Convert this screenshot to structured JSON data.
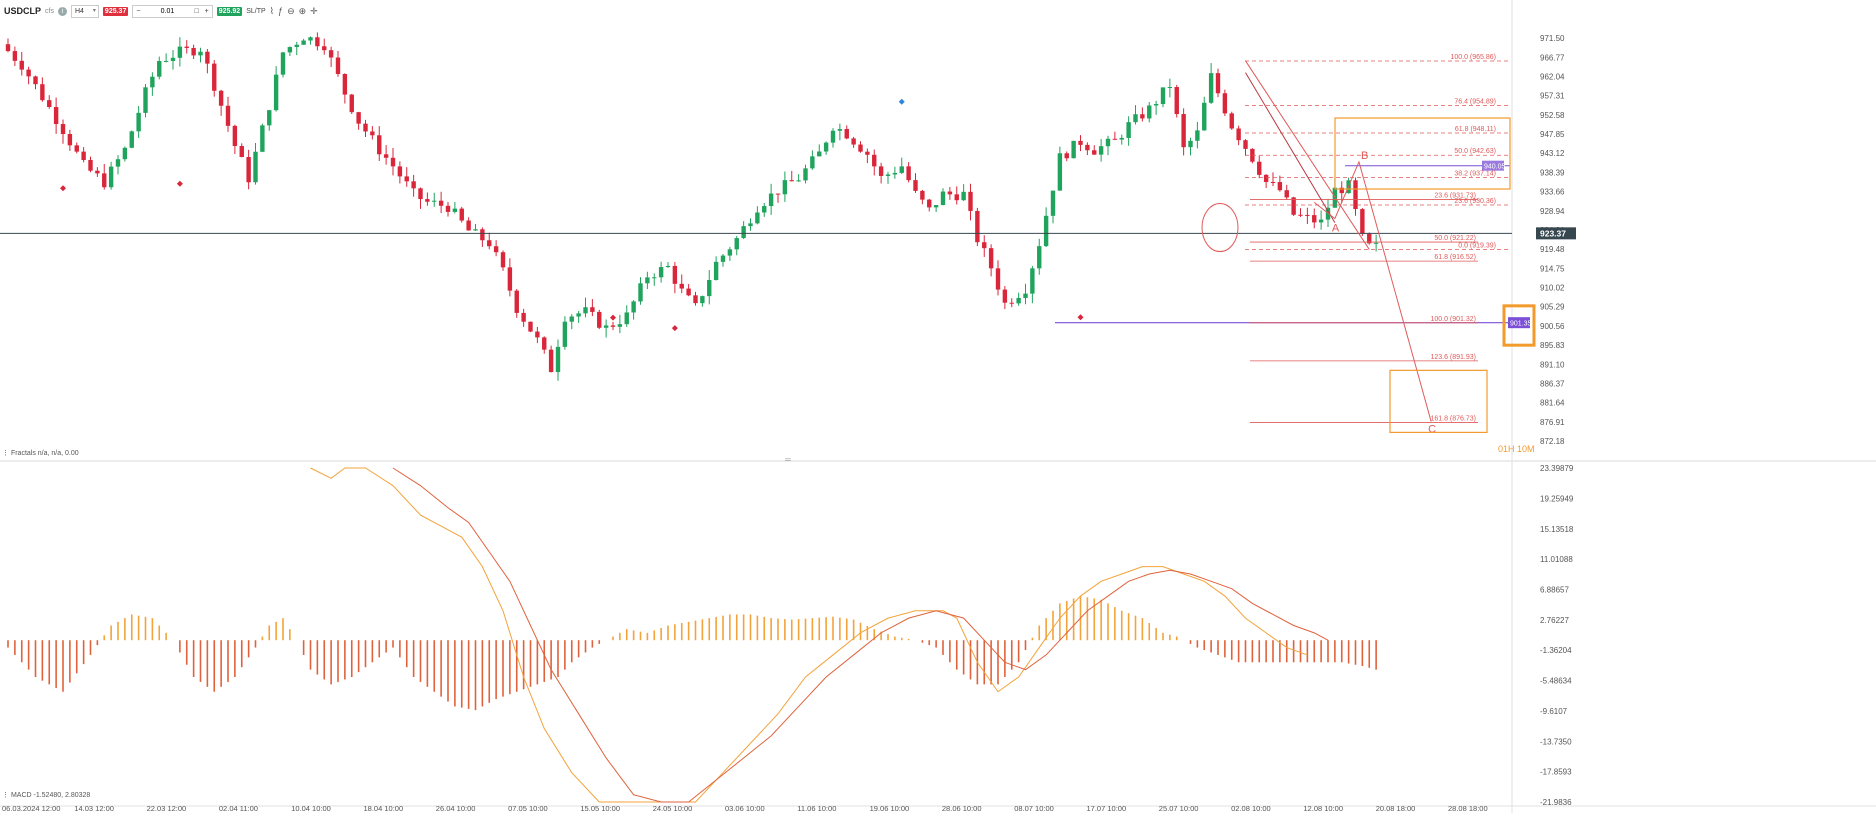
{
  "toolbar": {
    "symbol": "USDCLP",
    "symbol_sub": "cfs",
    "info_icon": "info-icon",
    "timeframe": "H4",
    "sell_price": "925.37",
    "minus": "−",
    "lot_value": "0.01",
    "lot_unit": "□",
    "plus": "+",
    "buy_price": "925.92",
    "sltp": "SL/TP",
    "icons": [
      "line-chart-icon",
      "indicator-icon",
      "zoom-out-icon",
      "zoom-in-icon",
      "crosshair-icon"
    ]
  },
  "colors": {
    "bull": "#1fa35d",
    "bear": "#d9263b",
    "fib": "#e05a5a",
    "orange": "#f39a2c",
    "purple": "#7b4fd6",
    "price_line": "#37474f",
    "macd_hist": "#e0623c",
    "macd_hist_pos": "#f2a33a",
    "macd_line": "#f2a33a",
    "signal_line": "#e0623c"
  },
  "chart_data": {
    "type": "candlestick",
    "symbol": "USDCLP",
    "timeframe": "H4",
    "ylim": [
      872.18,
      973.5
    ],
    "y_ticks": [
      "971.50",
      "966.77",
      "962.04",
      "957.31",
      "952.58",
      "947.85",
      "943.12",
      "938.39",
      "933.66",
      "928.94",
      "924.21",
      "919.48",
      "914.75",
      "910.02",
      "905.29",
      "900.56",
      "895.83",
      "891.10",
      "886.37",
      "881.64",
      "876.91",
      "872.18"
    ],
    "x_ticks": [
      "06.03.2024 12:00",
      "14.03 12:00",
      "22.03 12:00",
      "02.04 11:00",
      "10.04 10:00",
      "18.04 10:00",
      "26.04 10:00",
      "07.05 10:00",
      "15.05 10:00",
      "24.05 10:00",
      "03.06 10:00",
      "11.06 10:00",
      "19.06 10:00",
      "28.06 10:00",
      "08.07 10:00",
      "17.07 10:00",
      "25.07 10:00",
      "02.08 10:00",
      "12.08 10:00",
      "20.08 18:00",
      "28.08 18:00"
    ],
    "current_price": 923.37,
    "current_price_label": "923.37",
    "purple_level": 940.05,
    "purple_level_label": "940.05",
    "purple_line_level": 901.35,
    "purple_line_label": "901.35",
    "price_path": [
      [
        0,
        970
      ],
      [
        3,
        965
      ],
      [
        6,
        957
      ],
      [
        9,
        949
      ],
      [
        12,
        940
      ],
      [
        15,
        936
      ],
      [
        18,
        944
      ],
      [
        21,
        958
      ],
      [
        23,
        966
      ],
      [
        26,
        968
      ],
      [
        29,
        969
      ],
      [
        31,
        960
      ],
      [
        34,
        945
      ],
      [
        36,
        937
      ],
      [
        39,
        955
      ],
      [
        41,
        968
      ],
      [
        44,
        972
      ],
      [
        47,
        970
      ],
      [
        50,
        958
      ],
      [
        52,
        951
      ],
      [
        55,
        944
      ],
      [
        57,
        940
      ],
      [
        60,
        933
      ],
      [
        62,
        931
      ],
      [
        65,
        930
      ],
      [
        68,
        924
      ],
      [
        71,
        921
      ],
      [
        73,
        914
      ],
      [
        75,
        905
      ],
      [
        78,
        897
      ],
      [
        80,
        890
      ],
      [
        82,
        903
      ],
      [
        85,
        904
      ],
      [
        88,
        900
      ],
      [
        91,
        903
      ],
      [
        94,
        913
      ],
      [
        97,
        915
      ],
      [
        99,
        909
      ],
      [
        101,
        905
      ],
      [
        104,
        916
      ],
      [
        107,
        922
      ],
      [
        110,
        930
      ],
      [
        113,
        934
      ],
      [
        116,
        937
      ],
      [
        119,
        943
      ],
      [
        121,
        950
      ],
      [
        123,
        948
      ],
      [
        126,
        943
      ],
      [
        128,
        937
      ],
      [
        131,
        940
      ],
      [
        133,
        933
      ],
      [
        135,
        929
      ],
      [
        137,
        933
      ],
      [
        140,
        933
      ],
      [
        142,
        922
      ],
      [
        144,
        915
      ],
      [
        146,
        906
      ],
      [
        149,
        910
      ],
      [
        151,
        921
      ],
      [
        154,
        942
      ],
      [
        157,
        946
      ],
      [
        159,
        944
      ],
      [
        162,
        946
      ],
      [
        164,
        950
      ],
      [
        167,
        954
      ],
      [
        170,
        960
      ],
      [
        172,
        944
      ],
      [
        174,
        948
      ],
      [
        176,
        962
      ],
      [
        179,
        950
      ],
      [
        182,
        942
      ],
      [
        184,
        936
      ],
      [
        186,
        934
      ],
      [
        188,
        928
      ],
      [
        190,
        927
      ],
      [
        192,
        926
      ],
      [
        194,
        934
      ],
      [
        196,
        935
      ],
      [
        198,
        922
      ],
      [
        199,
        920
      ]
    ],
    "fractal_markers": [
      [
        8,
        934.5
      ],
      [
        25,
        935.6
      ],
      [
        88,
        902.6
      ],
      [
        97,
        900
      ],
      [
        130,
        955.8
      ],
      [
        156,
        902.7
      ]
    ],
    "fibonacci_left": [
      {
        "label": "100.0 (965.86)",
        "value": 965.86
      },
      {
        "label": "76.4 (954.89)",
        "value": 954.89
      },
      {
        "label": "61.8 (948.11)",
        "value": 948.11
      },
      {
        "label": "50.0 (942.63)",
        "value": 942.63
      },
      {
        "label": "38.2 (937.14)",
        "value": 937.14
      },
      {
        "label": "23.6 (930.36)",
        "value": 930.36
      },
      {
        "label": "0.0 (919.39)",
        "value": 919.39
      }
    ],
    "fibonacci_right": [
      {
        "label": "23.6 (931.73)",
        "value": 931.73
      },
      {
        "label": "50.0 (921.22)",
        "value": 921.22
      },
      {
        "label": "61.8 (916.52)",
        "value": 916.52
      },
      {
        "label": "100.0 (901.32)",
        "value": 901.32
      },
      {
        "label": "123.6 (891.93)",
        "value": 891.93
      },
      {
        "label": "161.8 (876.73)",
        "value": 876.73
      }
    ],
    "abc_labels": [
      "A",
      "B",
      "C"
    ],
    "countdown": "01H 10M",
    "indicators": {
      "fractals_label": "⋮ Fractals n/a, n/a, 0.00",
      "macd_label": "⋮ MACD -1.52480, 2.80328",
      "macd_ylim": [
        -21.9836,
        23.39879
      ],
      "macd_ticks": [
        "23.39879",
        "19.25949",
        "15.13518",
        "11.01088",
        "6.88657",
        "2.76227",
        "-1.36204",
        "-5.48634",
        "-9.6107",
        "-13.7350",
        "-17.8593",
        "-21.9836"
      ],
      "macd_histogram_anchor": [
        [
          0,
          -1
        ],
        [
          4,
          -5
        ],
        [
          8,
          -7
        ],
        [
          12,
          -2
        ],
        [
          15,
          2
        ],
        [
          18,
          3.5
        ],
        [
          21,
          3
        ],
        [
          24,
          0
        ],
        [
          27,
          -5
        ],
        [
          30,
          -7
        ],
        [
          33,
          -5
        ],
        [
          36,
          -1
        ],
        [
          38,
          2
        ],
        [
          40,
          3
        ],
        [
          42,
          0
        ],
        [
          44,
          -4
        ],
        [
          47,
          -6
        ],
        [
          50,
          -5
        ],
        [
          53,
          -3
        ],
        [
          56,
          -1
        ],
        [
          59,
          -5
        ],
        [
          62,
          -7
        ],
        [
          65,
          -9
        ],
        [
          68,
          -9.5
        ],
        [
          71,
          -8
        ],
        [
          74,
          -7
        ],
        [
          77,
          -6
        ],
        [
          80,
          -5
        ],
        [
          82,
          -3
        ],
        [
          85,
          -1
        ],
        [
          88,
          0.5
        ],
        [
          90,
          1.5
        ],
        [
          93,
          1
        ],
        [
          96,
          2
        ],
        [
          99,
          2.5
        ],
        [
          102,
          3
        ],
        [
          105,
          3.5
        ],
        [
          108,
          3.5
        ],
        [
          111,
          3
        ],
        [
          114,
          2.8
        ],
        [
          117,
          3
        ],
        [
          120,
          3.2
        ],
        [
          123,
          2.8
        ],
        [
          126,
          1.5
        ],
        [
          129,
          0.5
        ],
        [
          132,
          0
        ],
        [
          135,
          -1
        ],
        [
          138,
          -4
        ],
        [
          141,
          -6
        ],
        [
          144,
          -6
        ],
        [
          147,
          -3
        ],
        [
          150,
          2
        ],
        [
          153,
          5
        ],
        [
          156,
          6
        ],
        [
          159,
          5.5
        ],
        [
          162,
          4
        ],
        [
          165,
          3
        ],
        [
          168,
          1
        ],
        [
          170,
          0.5
        ],
        [
          173,
          -1
        ],
        [
          176,
          -2
        ],
        [
          179,
          -3
        ],
        [
          182,
          -3
        ],
        [
          185,
          -3
        ],
        [
          188,
          -3
        ],
        [
          191,
          -3
        ],
        [
          194,
          -3
        ],
        [
          197,
          -3.5
        ],
        [
          199,
          -4
        ]
      ],
      "macd_line": [
        [
          44,
          23.4
        ],
        [
          47,
          22
        ],
        [
          49,
          23.4
        ],
        [
          52,
          23.4
        ],
        [
          56,
          21
        ],
        [
          60,
          17
        ],
        [
          64,
          15
        ],
        [
          66,
          14
        ],
        [
          69,
          10
        ],
        [
          72,
          4
        ],
        [
          75,
          -5
        ],
        [
          78,
          -12
        ],
        [
          82,
          -18
        ],
        [
          86,
          -24
        ],
        [
          90,
          -28
        ],
        [
          96,
          -26
        ],
        [
          100,
          -22
        ],
        [
          104,
          -18
        ],
        [
          108,
          -14
        ],
        [
          112,
          -10
        ],
        [
          116,
          -5
        ],
        [
          120,
          -2
        ],
        [
          124,
          1
        ],
        [
          128,
          3
        ],
        [
          132,
          4
        ],
        [
          136,
          4
        ],
        [
          138,
          3
        ],
        [
          141,
          -3
        ],
        [
          144,
          -7
        ],
        [
          147,
          -5
        ],
        [
          150,
          -1
        ],
        [
          153,
          3
        ],
        [
          156,
          6
        ],
        [
          159,
          8
        ],
        [
          162,
          9
        ],
        [
          165,
          10
        ],
        [
          168,
          10
        ],
        [
          171,
          9
        ],
        [
          174,
          8
        ],
        [
          177,
          6
        ],
        [
          180,
          3
        ],
        [
          183,
          1
        ],
        [
          186,
          -1
        ],
        [
          189,
          -2
        ]
      ],
      "signal_line": [
        [
          56,
          23.4
        ],
        [
          60,
          21
        ],
        [
          64,
          18
        ],
        [
          67,
          16
        ],
        [
          70,
          12
        ],
        [
          73,
          8
        ],
        [
          76,
          2
        ],
        [
          79,
          -4
        ],
        [
          83,
          -10
        ],
        [
          87,
          -16
        ],
        [
          91,
          -21
        ],
        [
          95,
          -23
        ],
        [
          99,
          -22
        ],
        [
          103,
          -19
        ],
        [
          107,
          -16
        ],
        [
          111,
          -13
        ],
        [
          115,
          -9
        ],
        [
          119,
          -5
        ],
        [
          123,
          -2
        ],
        [
          127,
          1
        ],
        [
          131,
          3
        ],
        [
          135,
          4
        ],
        [
          139,
          3
        ],
        [
          142,
          0
        ],
        [
          145,
          -3
        ],
        [
          148,
          -4
        ],
        [
          151,
          -2
        ],
        [
          154,
          1
        ],
        [
          157,
          4
        ],
        [
          160,
          6
        ],
        [
          163,
          8
        ],
        [
          166,
          9
        ],
        [
          169,
          9.5
        ],
        [
          172,
          9
        ],
        [
          175,
          8
        ],
        [
          178,
          7
        ],
        [
          181,
          5
        ],
        [
          184,
          3.5
        ],
        [
          187,
          2
        ],
        [
          190,
          1
        ],
        [
          192,
          0
        ]
      ]
    }
  }
}
